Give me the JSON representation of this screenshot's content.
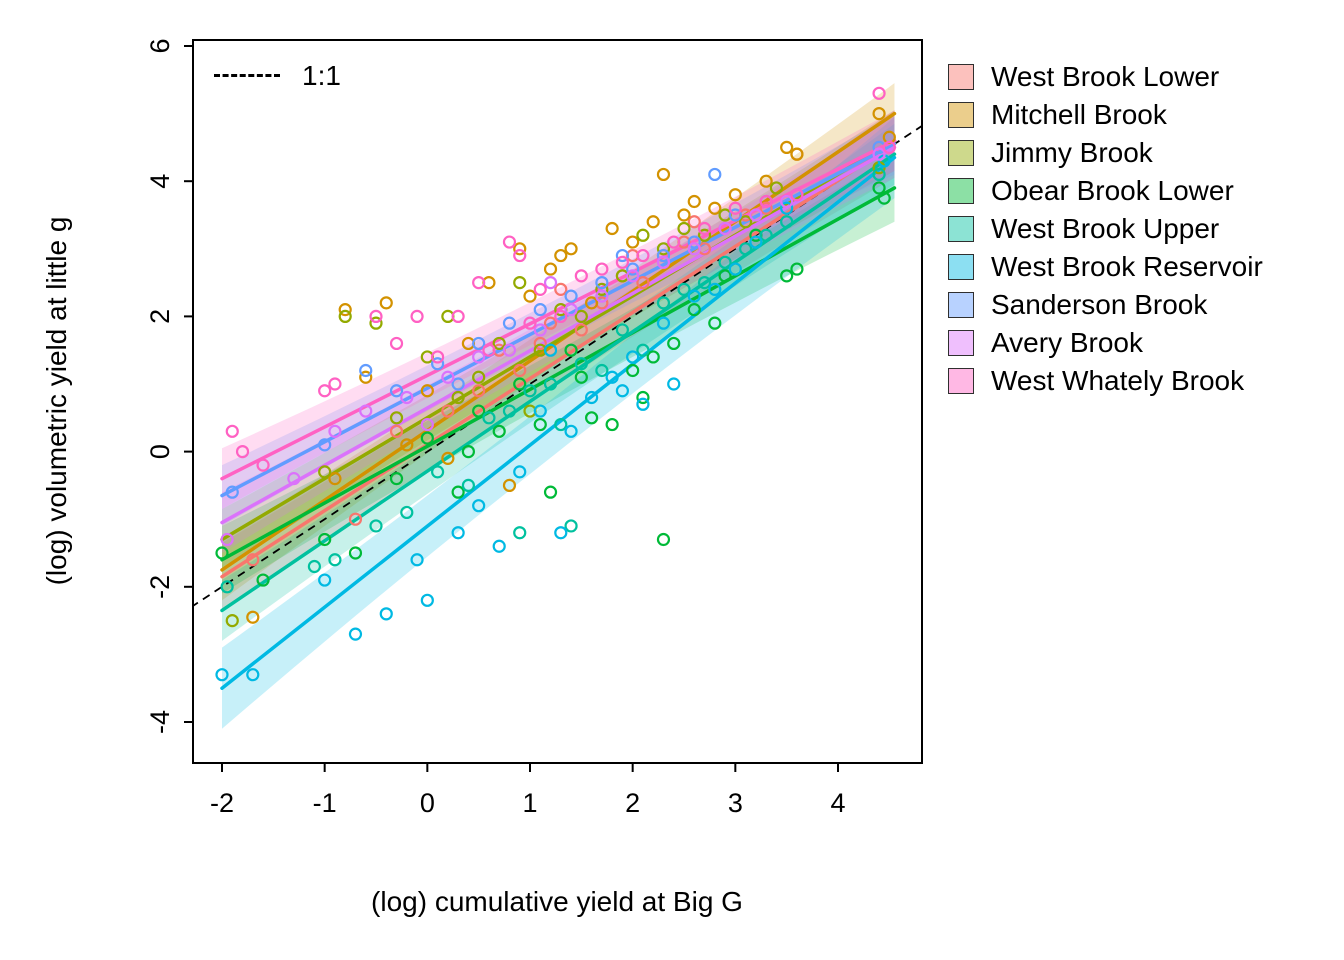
{
  "figure": {
    "kind": "scatter-with-regression-lines",
    "background": "#ffffff"
  },
  "chart_data": {
    "type": "scatter",
    "title": "",
    "xlabel": "(log) cumulative yield at Big G",
    "ylabel": "(log) volumetric yield at little g",
    "xlim": [
      -2.3,
      4.85
    ],
    "ylim": [
      -4.65,
      6.1
    ],
    "x_ticks": [
      -2,
      -1,
      0,
      1,
      2,
      3,
      4
    ],
    "y_ticks": [
      -4,
      -2,
      0,
      2,
      4,
      6
    ],
    "grid": false,
    "legend_position": "right",
    "reference_line": {
      "label": "1:1",
      "slope": 1,
      "intercept": 0,
      "style": "dashed",
      "color": "#000000"
    },
    "series": [
      {
        "name": "West Brook Lower",
        "color": "#F8766D",
        "line": {
          "x0": -2,
          "y0": -1.85,
          "x1": 4.55,
          "y1": 4.55
        },
        "ci": [
          0.5,
          0.2
        ],
        "points": [
          [
            -1.7,
            -1.6
          ],
          [
            -0.7,
            -1.0
          ],
          [
            -0.3,
            0.3
          ],
          [
            0.2,
            0.6
          ],
          [
            0.5,
            0.9
          ],
          [
            0.7,
            1.5
          ],
          [
            0.9,
            1.2
          ],
          [
            1.1,
            1.6
          ],
          [
            1.2,
            1.9
          ],
          [
            1.3,
            2.4
          ],
          [
            1.5,
            1.8
          ],
          [
            1.7,
            2.2
          ],
          [
            1.9,
            2.6
          ],
          [
            2.0,
            2.9
          ],
          [
            2.1,
            2.5
          ],
          [
            2.3,
            2.9
          ],
          [
            2.5,
            3.1
          ],
          [
            2.6,
            3.4
          ],
          [
            2.7,
            3.0
          ],
          [
            2.9,
            3.3
          ],
          [
            3.1,
            3.5
          ],
          [
            3.3,
            3.6
          ],
          [
            3.5,
            3.7
          ],
          [
            3.6,
            4.4
          ],
          [
            4.4,
            4.5
          ]
        ]
      },
      {
        "name": "Mitchell Brook",
        "color": "#D39200",
        "line": {
          "x0": -2,
          "y0": -1.75,
          "x1": 4.55,
          "y1": 5.0
        },
        "ci": [
          0.45,
          0.18
        ],
        "points": [
          [
            -1.7,
            -2.45
          ],
          [
            -0.9,
            -0.4
          ],
          [
            -0.8,
            2.1
          ],
          [
            -0.6,
            1.1
          ],
          [
            -0.4,
            2.2
          ],
          [
            -0.2,
            0.1
          ],
          [
            0.0,
            0.9
          ],
          [
            0.2,
            -0.1
          ],
          [
            0.4,
            1.6
          ],
          [
            0.6,
            2.5
          ],
          [
            0.8,
            -0.5
          ],
          [
            0.9,
            3.0
          ],
          [
            1.0,
            2.3
          ],
          [
            1.2,
            2.7
          ],
          [
            1.3,
            2.9
          ],
          [
            1.4,
            3.0
          ],
          [
            1.6,
            2.2
          ],
          [
            1.8,
            3.3
          ],
          [
            2.0,
            3.1
          ],
          [
            2.2,
            3.4
          ],
          [
            2.3,
            4.1
          ],
          [
            2.5,
            3.5
          ],
          [
            2.6,
            3.7
          ],
          [
            2.8,
            3.6
          ],
          [
            3.0,
            3.8
          ],
          [
            3.3,
            4.0
          ],
          [
            3.5,
            4.5
          ],
          [
            3.6,
            4.4
          ],
          [
            4.4,
            5.0
          ],
          [
            4.5,
            4.65
          ]
        ]
      },
      {
        "name": "Jimmy Brook",
        "color": "#93AA00",
        "line": {
          "x0": -2,
          "y0": -1.3,
          "x1": 4.55,
          "y1": 4.6
        },
        "ci": [
          0.45,
          0.18
        ],
        "points": [
          [
            -1.9,
            -2.5
          ],
          [
            -1.0,
            -0.3
          ],
          [
            -0.8,
            2.0
          ],
          [
            -0.5,
            1.9
          ],
          [
            -0.3,
            0.5
          ],
          [
            0.0,
            1.4
          ],
          [
            0.2,
            2.0
          ],
          [
            0.3,
            0.8
          ],
          [
            0.5,
            1.1
          ],
          [
            0.7,
            1.6
          ],
          [
            0.9,
            2.5
          ],
          [
            1.0,
            0.6
          ],
          [
            1.1,
            1.5
          ],
          [
            1.3,
            2.1
          ],
          [
            1.5,
            2.0
          ],
          [
            1.7,
            2.4
          ],
          [
            1.9,
            2.6
          ],
          [
            2.1,
            3.2
          ],
          [
            2.3,
            3.0
          ],
          [
            2.5,
            3.3
          ],
          [
            2.7,
            3.2
          ],
          [
            2.9,
            3.5
          ],
          [
            3.1,
            3.4
          ],
          [
            3.4,
            3.9
          ],
          [
            4.4,
            4.2
          ]
        ]
      },
      {
        "name": "Obear Brook Lower",
        "color": "#00BA38",
        "line": {
          "x0": -2,
          "y0": -1.6,
          "x1": 4.55,
          "y1": 3.9
        },
        "ci": [
          0.5,
          0.2
        ],
        "points": [
          [
            -2.0,
            -1.5
          ],
          [
            -1.6,
            -1.9
          ],
          [
            -1.0,
            -1.3
          ],
          [
            -0.7,
            -1.5
          ],
          [
            -0.3,
            -0.4
          ],
          [
            0.0,
            0.2
          ],
          [
            0.3,
            -0.6
          ],
          [
            0.4,
            0.0
          ],
          [
            0.5,
            0.6
          ],
          [
            0.7,
            0.3
          ],
          [
            0.9,
            1.0
          ],
          [
            1.1,
            0.4
          ],
          [
            1.2,
            -0.6
          ],
          [
            1.4,
            1.5
          ],
          [
            1.5,
            1.1
          ],
          [
            1.6,
            0.5
          ],
          [
            1.8,
            0.4
          ],
          [
            2.0,
            1.2
          ],
          [
            2.1,
            0.8
          ],
          [
            2.2,
            1.4
          ],
          [
            2.3,
            -1.3
          ],
          [
            2.4,
            1.6
          ],
          [
            2.6,
            2.1
          ],
          [
            2.8,
            1.9
          ],
          [
            2.9,
            2.6
          ],
          [
            3.2,
            3.2
          ],
          [
            3.5,
            2.6
          ],
          [
            3.6,
            2.7
          ],
          [
            4.4,
            3.9
          ],
          [
            4.45,
            3.75
          ]
        ]
      },
      {
        "name": "West Brook Upper",
        "color": "#00C19F",
        "line": {
          "x0": -2,
          "y0": -2.35,
          "x1": 4.55,
          "y1": 4.4
        },
        "ci": [
          0.45,
          0.18
        ],
        "points": [
          [
            -1.95,
            -2.0
          ],
          [
            -1.1,
            -1.7
          ],
          [
            -0.9,
            -1.6
          ],
          [
            -0.5,
            -1.1
          ],
          [
            -0.2,
            -0.9
          ],
          [
            0.1,
            -0.3
          ],
          [
            0.4,
            -0.5
          ],
          [
            0.6,
            0.5
          ],
          [
            0.8,
            0.6
          ],
          [
            0.9,
            -1.2
          ],
          [
            1.0,
            0.9
          ],
          [
            1.2,
            1.0
          ],
          [
            1.3,
            0.4
          ],
          [
            1.4,
            -1.1
          ],
          [
            1.5,
            1.3
          ],
          [
            1.7,
            1.2
          ],
          [
            1.9,
            1.8
          ],
          [
            2.1,
            1.5
          ],
          [
            2.3,
            2.2
          ],
          [
            2.5,
            2.4
          ],
          [
            2.7,
            2.5
          ],
          [
            2.9,
            2.8
          ],
          [
            3.1,
            3.0
          ],
          [
            3.3,
            3.2
          ],
          [
            3.5,
            3.4
          ],
          [
            4.4,
            4.1
          ]
        ]
      },
      {
        "name": "West Brook Reservoir",
        "color": "#00B9E3",
        "line": {
          "x0": -2,
          "y0": -3.5,
          "x1": 4.55,
          "y1": 4.35
        },
        "ci": [
          0.6,
          0.25
        ],
        "points": [
          [
            -2.0,
            -3.3
          ],
          [
            -1.7,
            -3.3
          ],
          [
            -1.0,
            -1.9
          ],
          [
            -0.7,
            -2.7
          ],
          [
            -0.4,
            -2.4
          ],
          [
            -0.1,
            -1.6
          ],
          [
            0.0,
            -2.2
          ],
          [
            0.3,
            -1.2
          ],
          [
            0.5,
            -0.8
          ],
          [
            0.7,
            -1.4
          ],
          [
            0.9,
            -0.3
          ],
          [
            1.1,
            0.6
          ],
          [
            1.2,
            1.5
          ],
          [
            1.3,
            -1.2
          ],
          [
            1.4,
            0.3
          ],
          [
            1.6,
            0.8
          ],
          [
            1.8,
            1.1
          ],
          [
            1.9,
            0.9
          ],
          [
            2.0,
            1.4
          ],
          [
            2.1,
            0.7
          ],
          [
            2.3,
            1.9
          ],
          [
            2.4,
            1.0
          ],
          [
            2.6,
            2.3
          ],
          [
            2.8,
            2.4
          ],
          [
            3.0,
            2.7
          ],
          [
            3.2,
            3.1
          ],
          [
            3.5,
            3.6
          ],
          [
            4.45,
            4.3
          ]
        ]
      },
      {
        "name": "Sanderson Brook",
        "color": "#619CFF",
        "line": {
          "x0": -2,
          "y0": -0.65,
          "x1": 4.55,
          "y1": 4.55
        },
        "ci": [
          0.45,
          0.18
        ],
        "points": [
          [
            -1.9,
            -0.6
          ],
          [
            -1.0,
            0.1
          ],
          [
            -0.6,
            1.2
          ],
          [
            -0.3,
            0.9
          ],
          [
            0.1,
            1.3
          ],
          [
            0.3,
            1.0
          ],
          [
            0.5,
            1.6
          ],
          [
            0.8,
            1.9
          ],
          [
            1.1,
            2.1
          ],
          [
            1.4,
            2.3
          ],
          [
            1.7,
            2.5
          ],
          [
            1.9,
            2.9
          ],
          [
            2.0,
            2.7
          ],
          [
            2.3,
            2.9
          ],
          [
            2.6,
            3.1
          ],
          [
            2.8,
            4.1
          ],
          [
            3.0,
            3.5
          ],
          [
            3.3,
            3.7
          ],
          [
            3.6,
            3.8
          ],
          [
            4.4,
            4.5
          ]
        ]
      },
      {
        "name": "Avery Brook",
        "color": "#DB72FB",
        "line": {
          "x0": -2,
          "y0": -1.05,
          "x1": 4.55,
          "y1": 4.5
        },
        "ci": [
          0.45,
          0.18
        ],
        "points": [
          [
            -1.95,
            -1.3
          ],
          [
            -1.3,
            -0.4
          ],
          [
            -0.9,
            0.3
          ],
          [
            -0.6,
            0.6
          ],
          [
            -0.2,
            0.8
          ],
          [
            0.0,
            0.4
          ],
          [
            0.2,
            1.1
          ],
          [
            0.5,
            1.4
          ],
          [
            0.8,
            1.5
          ],
          [
            1.1,
            1.8
          ],
          [
            1.2,
            2.5
          ],
          [
            1.4,
            2.1
          ],
          [
            1.7,
            2.3
          ],
          [
            2.0,
            2.6
          ],
          [
            2.3,
            2.8
          ],
          [
            2.6,
            3.0
          ],
          [
            2.9,
            3.3
          ],
          [
            3.2,
            3.5
          ],
          [
            3.5,
            3.7
          ],
          [
            4.4,
            4.4
          ]
        ]
      },
      {
        "name": "West Whately Brook",
        "color": "#FF61C3",
        "line": {
          "x0": -2,
          "y0": -0.4,
          "x1": 4.55,
          "y1": 4.6
        },
        "ci": [
          0.45,
          0.18
        ],
        "points": [
          [
            -1.9,
            0.3
          ],
          [
            -1.8,
            0.0
          ],
          [
            -1.6,
            -0.2
          ],
          [
            -1.0,
            0.9
          ],
          [
            -0.9,
            1.0
          ],
          [
            -0.5,
            2.0
          ],
          [
            -0.3,
            1.6
          ],
          [
            -0.1,
            2.0
          ],
          [
            0.1,
            1.4
          ],
          [
            0.3,
            2.0
          ],
          [
            0.5,
            2.5
          ],
          [
            0.6,
            1.5
          ],
          [
            0.8,
            3.1
          ],
          [
            0.9,
            2.9
          ],
          [
            1.0,
            1.9
          ],
          [
            1.1,
            2.4
          ],
          [
            1.3,
            2.0
          ],
          [
            1.5,
            2.6
          ],
          [
            1.7,
            2.7
          ],
          [
            1.9,
            2.8
          ],
          [
            2.1,
            2.9
          ],
          [
            2.4,
            3.1
          ],
          [
            2.7,
            3.3
          ],
          [
            3.0,
            3.6
          ],
          [
            3.3,
            3.7
          ],
          [
            3.6,
            3.8
          ],
          [
            4.4,
            5.3
          ],
          [
            4.5,
            4.5
          ]
        ]
      }
    ]
  }
}
